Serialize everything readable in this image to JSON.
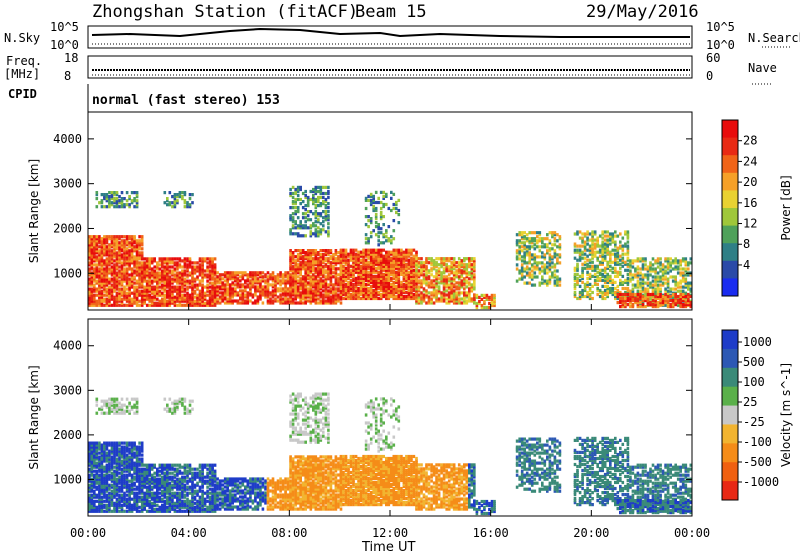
{
  "header": {
    "title": "Zhongshan Station (fitACF)",
    "beam": "Beam 15",
    "date": "29/May/2016"
  },
  "panels": {
    "sky": {
      "left_label": "N.Sky",
      "right_label": "N.Search",
      "left_ticks": [
        "10^5",
        "10^0"
      ],
      "right_ticks": [
        "10^5",
        "10^0"
      ]
    },
    "freq": {
      "left_label_1": "Freq.",
      "left_label_2": "[MHz]",
      "right_label": "Nave",
      "left_ticks": [
        "18",
        "8"
      ],
      "right_ticks": [
        "60",
        "0"
      ]
    },
    "cpid": {
      "label": "CPID",
      "text": "normal (fast stereo) 153"
    }
  },
  "chart_data": [
    {
      "type": "heatmap",
      "title": "",
      "xlabel": "Time UT",
      "ylabel": "Slant Range [km]",
      "x_ticks": [
        "00:00",
        "04:00",
        "08:00",
        "12:00",
        "16:00",
        "20:00",
        "00:00"
      ],
      "y_ticks": [
        1000,
        2000,
        3000,
        4000
      ],
      "ylim": [
        180,
        4600
      ],
      "colorbar": {
        "label": "Power [dB]",
        "ticks": [
          "4",
          "8",
          "12",
          "16",
          "20",
          "24",
          "28"
        ],
        "colors": [
          "#1a2cf0",
          "#2a4aa8",
          "#2f7f86",
          "#4fa15a",
          "#9fc73a",
          "#e9d232",
          "#f5a028",
          "#f06418",
          "#e82a14",
          "#e80c0c"
        ]
      }
    },
    {
      "type": "heatmap",
      "title": "",
      "xlabel": "Time UT",
      "ylabel": "Slant Range [km]",
      "x_ticks": [
        "00:00",
        "04:00",
        "08:00",
        "12:00",
        "16:00",
        "20:00",
        "00:00"
      ],
      "y_ticks": [
        1000,
        2000,
        3000,
        4000
      ],
      "ylim": [
        180,
        4600
      ],
      "colorbar": {
        "label": "Velocity [m s^-1]",
        "ticks": [
          "1000",
          "500",
          "100",
          "25",
          "-25",
          "-100",
          "-500",
          "-1000"
        ],
        "colors": [
          "#1e3cc8",
          "#2c58b4",
          "#3a8a78",
          "#5ab04a",
          "#c8c8c8",
          "#f2b430",
          "#f58c18",
          "#f06010",
          "#e82814"
        ]
      }
    }
  ],
  "colors": {
    "power_bg_features": "#e8321a",
    "velocity_bg_features": "#3a8a78"
  }
}
